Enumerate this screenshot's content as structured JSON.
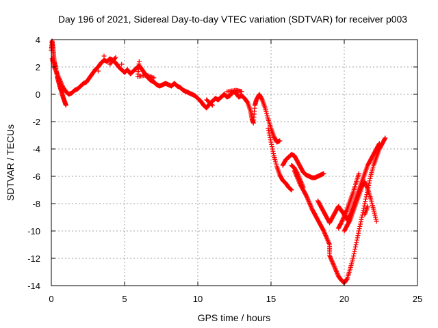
{
  "chart_data": {
    "type": "scatter",
    "title": "Day 196 of 2021, Sidereal Day-to-day VTEC variation (SDTVAR) for receiver p003",
    "xlabel": "GPS time / hours",
    "ylabel": "SDTVAR / TECUs",
    "xlim": [
      0,
      25
    ],
    "ylim": [
      -14,
      4
    ],
    "xticks": [
      "0",
      "5",
      "10",
      "15",
      "20",
      "25"
    ],
    "yticks": [
      "4",
      "2",
      "0",
      "-2",
      "-4",
      "-6",
      "-8",
      "-10",
      "-12",
      "-14"
    ],
    "grid": true,
    "marker": "plus",
    "series_color": "#ff0000",
    "series": [
      {
        "points": [
          [
            0.0,
            3.2
          ],
          [
            0.05,
            3.9
          ],
          [
            0.1,
            3.5
          ],
          [
            0.15,
            3.0
          ],
          [
            0.2,
            2.4
          ],
          [
            0.3,
            2.0
          ],
          [
            0.4,
            1.3
          ],
          [
            0.5,
            0.9
          ],
          [
            0.6,
            0.5
          ],
          [
            0.7,
            0.2
          ],
          [
            0.8,
            -0.2
          ],
          [
            0.9,
            -0.5
          ],
          [
            1.0,
            -0.8
          ],
          [
            0.05,
            2.6
          ],
          [
            0.2,
            2.0
          ],
          [
            0.4,
            1.5
          ],
          [
            0.6,
            1.0
          ],
          [
            0.8,
            0.5
          ],
          [
            1.0,
            0.2
          ],
          [
            1.2,
            0.0
          ],
          [
            1.4,
            0.1
          ],
          [
            1.6,
            0.3
          ],
          [
            1.8,
            0.4
          ],
          [
            2.0,
            0.6
          ],
          [
            2.2,
            0.8
          ],
          [
            2.4,
            0.9
          ],
          [
            2.6,
            1.2
          ],
          [
            2.8,
            1.5
          ],
          [
            3.0,
            1.8
          ],
          [
            3.2,
            2.0
          ],
          [
            3.4,
            2.3
          ],
          [
            3.6,
            2.5
          ],
          [
            3.8,
            2.4
          ],
          [
            4.0,
            2.6
          ],
          [
            4.2,
            2.5
          ],
          [
            4.4,
            2.3
          ],
          [
            4.6,
            2.0
          ],
          [
            4.8,
            1.8
          ],
          [
            5.0,
            1.6
          ],
          [
            5.2,
            1.8
          ],
          [
            5.4,
            1.5
          ],
          [
            5.6,
            1.7
          ],
          [
            5.8,
            1.9
          ],
          [
            6.0,
            2.1
          ],
          [
            6.2,
            1.8
          ],
          [
            6.4,
            1.5
          ],
          [
            6.6,
            1.2
          ],
          [
            6.8,
            1.0
          ],
          [
            7.0,
            0.9
          ],
          [
            7.2,
            0.7
          ],
          [
            7.4,
            0.6
          ],
          [
            7.6,
            0.7
          ],
          [
            7.8,
            0.8
          ],
          [
            8.0,
            0.7
          ],
          [
            8.2,
            0.6
          ],
          [
            8.4,
            0.8
          ],
          [
            8.6,
            0.6
          ],
          [
            8.8,
            0.5
          ],
          [
            9.0,
            0.3
          ],
          [
            9.2,
            0.2
          ],
          [
            9.4,
            0.1
          ],
          [
            9.6,
            0.0
          ],
          [
            9.8,
            -0.1
          ],
          [
            10.0,
            -0.3
          ],
          [
            10.2,
            -0.5
          ],
          [
            10.4,
            -0.8
          ],
          [
            10.6,
            -1.0
          ],
          [
            10.8,
            -0.7
          ],
          [
            11.0,
            -0.5
          ],
          [
            11.2,
            -0.3
          ],
          [
            11.4,
            -0.4
          ],
          [
            11.6,
            -0.2
          ],
          [
            11.8,
            0.0
          ],
          [
            12.0,
            -0.2
          ],
          [
            12.2,
            -0.1
          ],
          [
            12.4,
            0.2
          ],
          [
            12.6,
            0.1
          ],
          [
            12.8,
            -0.2
          ],
          [
            13.0,
            -0.1
          ],
          [
            13.2,
            -0.3
          ],
          [
            13.4,
            -0.6
          ],
          [
            13.6,
            -1.2
          ],
          [
            13.7,
            -1.8
          ],
          [
            13.8,
            -2.1
          ],
          [
            13.9,
            -0.8
          ],
          [
            14.0,
            -0.4
          ],
          [
            14.2,
            0.0
          ],
          [
            14.4,
            -0.4
          ],
          [
            14.6,
            -1.0
          ],
          [
            14.8,
            -1.8
          ],
          [
            15.0,
            -2.5
          ],
          [
            15.2,
            -3.1
          ],
          [
            15.4,
            -3.5
          ],
          [
            15.6,
            -3.4
          ],
          [
            14.8,
            -2.5
          ],
          [
            15.0,
            -3.5
          ],
          [
            15.2,
            -4.5
          ],
          [
            15.4,
            -5.3
          ],
          [
            15.6,
            -5.9
          ],
          [
            15.8,
            -6.3
          ],
          [
            16.0,
            -6.5
          ],
          [
            16.2,
            -6.8
          ],
          [
            16.4,
            -7.0
          ],
          [
            15.8,
            -5.2
          ],
          [
            16.0,
            -4.8
          ],
          [
            16.2,
            -4.6
          ],
          [
            16.4,
            -4.4
          ],
          [
            16.6,
            -4.5
          ],
          [
            16.8,
            -4.9
          ],
          [
            17.0,
            -5.3
          ],
          [
            17.2,
            -5.7
          ],
          [
            17.4,
            -5.9
          ],
          [
            17.6,
            -6.0
          ],
          [
            17.8,
            -6.1
          ],
          [
            18.0,
            -6.1
          ],
          [
            18.2,
            -6.0
          ],
          [
            18.4,
            -5.9
          ],
          [
            18.6,
            -5.8
          ],
          [
            16.6,
            -5.6
          ],
          [
            16.8,
            -6.1
          ],
          [
            17.0,
            -6.6
          ],
          [
            17.2,
            -7.0
          ],
          [
            17.4,
            -7.4
          ],
          [
            17.6,
            -7.9
          ],
          [
            17.8,
            -8.4
          ],
          [
            18.0,
            -8.8
          ],
          [
            18.2,
            -9.2
          ],
          [
            18.4,
            -9.6
          ],
          [
            18.6,
            -10.0
          ],
          [
            18.8,
            -10.5
          ],
          [
            19.0,
            -11.0
          ],
          [
            19.0,
            -11.8
          ],
          [
            19.2,
            -12.3
          ],
          [
            19.4,
            -12.8
          ],
          [
            19.6,
            -13.3
          ],
          [
            19.8,
            -13.6
          ],
          [
            20.0,
            -13.8
          ],
          [
            20.2,
            -13.5
          ],
          [
            20.4,
            -12.8
          ],
          [
            20.6,
            -12.0
          ],
          [
            20.8,
            -11.0
          ],
          [
            21.0,
            -10.0
          ],
          [
            21.2,
            -9.0
          ],
          [
            21.4,
            -8.0
          ],
          [
            21.6,
            -7.0
          ],
          [
            21.8,
            -6.0
          ],
          [
            22.0,
            -5.2
          ],
          [
            22.2,
            -4.6
          ],
          [
            22.4,
            -4.0
          ],
          [
            22.6,
            -3.6
          ],
          [
            22.8,
            -3.2
          ],
          [
            18.2,
            -7.8
          ],
          [
            18.4,
            -8.2
          ],
          [
            18.6,
            -8.6
          ],
          [
            18.8,
            -9.0
          ],
          [
            19.0,
            -9.4
          ],
          [
            19.2,
            -9.0
          ],
          [
            19.4,
            -8.6
          ],
          [
            19.6,
            -8.2
          ],
          [
            19.8,
            -8.5
          ],
          [
            20.0,
            -8.8
          ],
          [
            20.2,
            -9.2
          ],
          [
            20.4,
            -8.8
          ],
          [
            20.6,
            -8.2
          ],
          [
            20.8,
            -7.6
          ],
          [
            21.0,
            -7.0
          ],
          [
            21.2,
            -6.4
          ],
          [
            21.4,
            -5.8
          ],
          [
            21.6,
            -5.2
          ],
          [
            21.8,
            -4.8
          ],
          [
            22.0,
            -4.4
          ],
          [
            22.2,
            -4.0
          ],
          [
            22.4,
            -3.6
          ],
          [
            20.0,
            -10.0
          ],
          [
            20.2,
            -9.6
          ],
          [
            20.4,
            -9.2
          ],
          [
            20.6,
            -8.6
          ],
          [
            20.8,
            -8.0
          ],
          [
            21.0,
            -7.4
          ],
          [
            21.2,
            -6.8
          ],
          [
            21.4,
            -6.4
          ],
          [
            21.6,
            -6.9
          ],
          [
            21.8,
            -7.6
          ],
          [
            22.0,
            -8.4
          ],
          [
            22.2,
            -9.3
          ],
          [
            21.4,
            -8.8
          ],
          [
            21.6,
            -8.2
          ],
          [
            19.6,
            -9.8
          ],
          [
            19.8,
            -9.4
          ],
          [
            20.0,
            -8.9
          ],
          [
            20.2,
            -8.4
          ],
          [
            20.4,
            -7.8
          ],
          [
            20.6,
            -7.2
          ],
          [
            20.8,
            -6.5
          ],
          [
            21.0,
            -5.8
          ],
          [
            17.2,
            -6.8
          ],
          [
            17.0,
            -6.3
          ],
          [
            16.8,
            -5.8
          ],
          [
            16.6,
            -5.4
          ],
          [
            16.4,
            -5.2
          ],
          [
            3.6,
            2.8
          ],
          [
            4.4,
            2.7
          ],
          [
            4.0,
            2.2
          ],
          [
            3.2,
            1.7
          ],
          [
            4.8,
            2.2
          ],
          [
            6.0,
            2.4
          ],
          [
            5.9,
            1.3
          ],
          [
            6.5,
            1.4
          ],
          [
            7.0,
            1.2
          ],
          [
            12.0,
            0.2
          ],
          [
            12.6,
            0.3
          ],
          [
            13.0,
            0.2
          ],
          [
            11.0,
            -0.8
          ],
          [
            10.6,
            -0.4
          ]
        ]
      }
    ]
  }
}
